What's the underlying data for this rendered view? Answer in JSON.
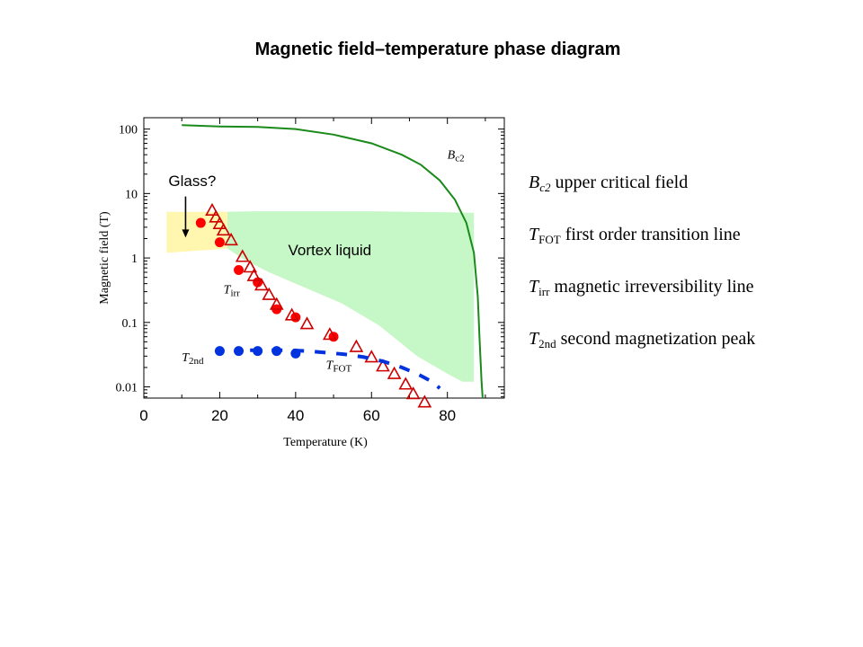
{
  "title": "Magnetic field–temperature phase diagram",
  "chart_data": {
    "type": "scatter",
    "xlabel": "Temperature (K)",
    "ylabel": "Magnetic field (T)",
    "xlim": [
      0,
      95
    ],
    "ylim": [
      0.0067,
      150
    ],
    "yscale": "log",
    "x_ticks": [
      "0",
      "20",
      "40",
      "60",
      "80"
    ],
    "y_ticks": [
      "0.01",
      "0.1",
      "1",
      "10",
      "100"
    ],
    "series": [
      {
        "name": "Bc2",
        "kind": "line",
        "color": "#1a8a1a",
        "x": [
          10,
          20,
          30,
          40,
          50,
          60,
          68,
          73,
          78,
          82,
          85,
          87,
          88,
          88.5,
          89,
          89.3
        ],
        "y": [
          115,
          110,
          108,
          100,
          82,
          60,
          40,
          28,
          16,
          8,
          3.5,
          1.2,
          0.25,
          0.05,
          0.012,
          0.005
        ]
      },
      {
        "name": "Tirr",
        "kind": "circle",
        "color": "#ff0000",
        "x": [
          15,
          20,
          25,
          30,
          35,
          40,
          50
        ],
        "y": [
          3.5,
          1.75,
          0.65,
          0.42,
          0.16,
          0.12,
          0.06
        ]
      },
      {
        "name": "TFOT",
        "kind": "triangle",
        "color": "#cc0000",
        "x": [
          18,
          19,
          20,
          21,
          23,
          26,
          28,
          29,
          31,
          33,
          35,
          39,
          43,
          49,
          56,
          60,
          63,
          66,
          69,
          71,
          74
        ],
        "y": [
          5.5,
          4.3,
          3.4,
          2.7,
          1.9,
          1.05,
          0.72,
          0.53,
          0.38,
          0.27,
          0.19,
          0.13,
          0.095,
          0.065,
          0.042,
          0.029,
          0.021,
          0.016,
          0.011,
          0.0078,
          0.0058
        ]
      },
      {
        "name": "T2nd",
        "kind": "circle",
        "color": "#0033dd",
        "x": [
          20,
          25,
          30,
          35,
          40
        ],
        "y": [
          0.036,
          0.036,
          0.036,
          0.036,
          0.033
        ]
      },
      {
        "name": "T2nd dashed",
        "kind": "dash",
        "color": "#0033dd",
        "x": [
          28,
          33,
          38,
          43,
          48,
          53,
          58,
          63,
          68,
          72,
          76,
          78
        ],
        "y": [
          0.037,
          0.037,
          0.037,
          0.036,
          0.034,
          0.032,
          0.029,
          0.025,
          0.02,
          0.016,
          0.012,
          0.0095
        ]
      }
    ],
    "regions": [
      {
        "name": "Vortex liquid",
        "color": "#c6f7c6",
        "x": [
          22,
          30,
          40,
          50,
          60,
          70,
          80,
          87,
          87,
          84,
          80,
          72,
          62,
          52,
          45,
          40,
          33,
          27,
          22
        ],
        "y": [
          5.2,
          5.3,
          5.3,
          5.3,
          5.3,
          5.2,
          5.1,
          5.0,
          0.012,
          0.012,
          0.016,
          0.03,
          0.09,
          0.2,
          0.3,
          0.4,
          0.6,
          0.9,
          1.4
        ]
      },
      {
        "name": "Glass?",
        "color": "#fff6b0",
        "x": [
          6,
          22,
          22,
          6
        ],
        "y": [
          5.2,
          5.2,
          1.4,
          1.2
        ]
      }
    ],
    "annotations": [
      {
        "text": "Glass?",
        "x": 9,
        "y": 13
      },
      {
        "text": "Vortex liquid",
        "x": 49,
        "y": 1.1
      },
      {
        "text": "Bc2",
        "x": 80,
        "y": 35
      },
      {
        "text": "Tirr",
        "x": 21,
        "y": 0.28
      },
      {
        "text": "T2nd",
        "x": 10,
        "y": 0.025
      },
      {
        "text": "TFOT",
        "x": 48,
        "y": 0.019
      }
    ],
    "curve_labels": {
      "bc2": {
        "main": "B",
        "sub": "c2"
      },
      "tirr": {
        "main": "T",
        "sub": "irr"
      },
      "t2nd": {
        "main": "T",
        "sub": "2nd"
      },
      "tfot": {
        "main": "T",
        "sub": "FOT"
      }
    },
    "glass_label": "Glass?",
    "vortex_label": "Vortex liquid"
  },
  "legend": [
    {
      "sym": "B",
      "sub": "c2",
      "text": " upper critical field"
    },
    {
      "sym": "T",
      "sub": "FOT",
      "text": " first order transition line"
    },
    {
      "sym": "T",
      "sub": "irr",
      "text": " magnetic irreversibility line"
    },
    {
      "sym": "T",
      "sub": "2nd",
      "text": " second magnetization peak"
    }
  ]
}
